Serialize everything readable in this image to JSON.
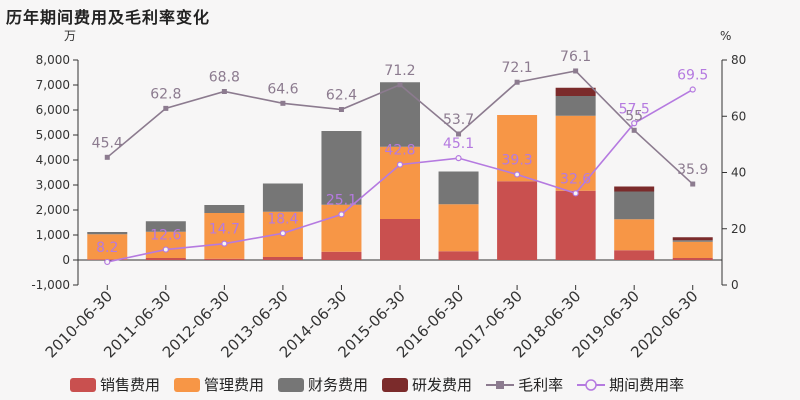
{
  "title": "历年期间费用及毛利率变化",
  "chart_data": {
    "type": "bar",
    "categories": [
      "2010-06-30",
      "2011-06-30",
      "2012-06-30",
      "2013-06-30",
      "2014-06-30",
      "2015-06-30",
      "2016-06-30",
      "2017-06-30",
      "2018-06-30",
      "2019-06-30",
      "2020-06-30"
    ],
    "left_unit": "万",
    "right_unit": "%",
    "ylim_left": [
      -1000,
      8000
    ],
    "ylim_right": [
      0,
      80
    ],
    "left_ticks": [
      "8,000",
      "7,000",
      "6,000",
      "5,000",
      "4,000",
      "3,000",
      "2,000",
      "1,000",
      "0",
      "-1,000"
    ],
    "right_ticks": [
      "80",
      "60",
      "40",
      "20",
      "0"
    ],
    "stacked": true,
    "series": [
      {
        "name": "销售费用",
        "color": "#c9504f",
        "values": [
          30,
          80,
          50,
          120,
          330,
          1640,
          350,
          3150,
          2770,
          390,
          80
        ]
      },
      {
        "name": "管理费用",
        "color": "#f79646",
        "values": [
          1000,
          1050,
          1830,
          1810,
          1880,
          2890,
          1880,
          2650,
          3000,
          1240,
          650
        ]
      },
      {
        "name": "财务费用",
        "color": "#767676",
        "values": [
          90,
          420,
          320,
          1130,
          2950,
          2580,
          1310,
          0,
          790,
          1110,
          60
        ]
      },
      {
        "name": "研发费用",
        "color": "#7b2b2b",
        "values": [
          0,
          0,
          0,
          0,
          0,
          0,
          0,
          0,
          330,
          200,
          120
        ]
      }
    ],
    "lines": [
      {
        "name": "毛利率",
        "color": "#8c7b8f",
        "values": [
          45.4,
          62.8,
          68.8,
          64.6,
          62.4,
          71.2,
          53.7,
          72.1,
          76.1,
          55,
          35.9
        ],
        "labels": [
          "45.4",
          "62.8",
          "68.8",
          "64.6",
          "62.4",
          "71.2",
          "53.7",
          "72.1",
          "76.1",
          "55",
          "35.9"
        ]
      },
      {
        "name": "期间费用率",
        "color": "#b57ae0",
        "values": [
          8.2,
          12.6,
          14.7,
          18.4,
          25.1,
          42.8,
          45.1,
          39.3,
          32.6,
          57.5,
          69.5
        ],
        "labels": [
          "8.2",
          "12.6",
          "14.7",
          "18.4",
          "25.1",
          "42.8",
          "45.1",
          "39.3",
          "32.6",
          "57.5",
          "69.5"
        ]
      }
    ],
    "legend_position": "bottom",
    "grid": false
  }
}
